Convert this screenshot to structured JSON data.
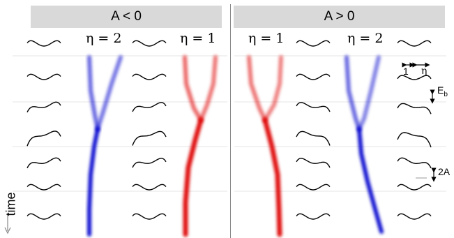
{
  "panels": {
    "left": {
      "title": "A < 0",
      "traces": [
        {
          "eta_label": "η = 2",
          "color": "#0000cc"
        },
        {
          "eta_label": "η = 1",
          "color": "#dd0000"
        }
      ]
    },
    "right": {
      "title": "A > 0",
      "traces": [
        {
          "eta_label": "η = 1",
          "color": "#dd0000"
        },
        {
          "eta_label": "η = 2",
          "color": "#0000cc"
        }
      ]
    }
  },
  "time_label": "time",
  "annotations": {
    "eb_label": "E",
    "eb_sub": "b",
    "twoA_label": "2A",
    "one_label": "1",
    "eta_label": "η"
  }
}
